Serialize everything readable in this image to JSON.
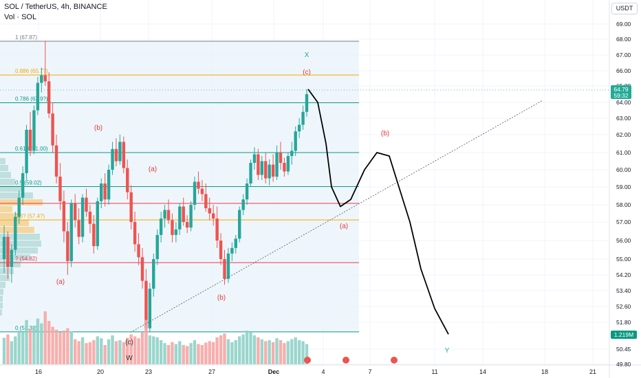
{
  "header": {
    "symbol": "SOL / TetherUS, 4h, BINANCE",
    "volume_label": "Vol · SOL",
    "currency": "USDT"
  },
  "colors": {
    "up": "#26a69a",
    "down": "#ef5350",
    "fib_gray": "#787b86",
    "fib_orange": "#f7a600",
    "fib_teal": "#089981",
    "fib_red": "#f23645",
    "wave_label": "#e53935",
    "price_tag": "#22ab94",
    "vol_tag": "#089981"
  },
  "chart_data": {
    "type": "candlestick",
    "y_axis": {
      "ticks": [
        "69.00",
        "68.00",
        "67.00",
        "66.00",
        "65.00",
        "64.00",
        "63.00",
        "62.00",
        "61.00",
        "60.00",
        "59.00",
        "58.00",
        "57.00",
        "56.00",
        "55.00",
        "54.20",
        "53.40",
        "52.60",
        "51.80",
        "50.45",
        "49.80"
      ],
      "current_price": "64.79",
      "countdown": "59:32",
      "volume_tag": "1.219M"
    },
    "x_axis": {
      "ticks": [
        "16",
        "20",
        "23",
        "27",
        "Dec",
        "4",
        "7",
        "11",
        "14",
        "18",
        "21"
      ]
    },
    "fib_levels": [
      {
        "label": "1 (67.87)",
        "price": 67.87,
        "color": "#787b86"
      },
      {
        "label": "0.886 (65.7?)",
        "price": 65.72,
        "color": "#f7a600"
      },
      {
        "label": "0.786 (63.9?)",
        "price": 63.98,
        "color": "#089981"
      },
      {
        "label": "0.618 (61.00)",
        "price": 61.0,
        "color": "#089981"
      },
      {
        "label": "0.5 (59.02)",
        "price": 59.02,
        "color": "#089981"
      },
      {
        "label": "",
        "price": 58.08,
        "color": "#f23645"
      },
      {
        "label": "0.3? (57.4?)",
        "price": 57.12,
        "color": "#f7a600"
      },
      {
        "label": "? (54.82)",
        "price": 54.82,
        "color": "#f23645"
      },
      {
        "label": "0 (51.32)",
        "price": 51.32,
        "color": "#089981"
      }
    ],
    "wave_labels": [
      "(a)",
      "(b)",
      "(a)",
      "(b)",
      "(c)",
      "(c)",
      "(b)",
      "(a)",
      "X",
      "Y",
      "W"
    ],
    "candles_ohlc": [
      [
        55.0,
        56.8,
        54.3,
        56.2
      ],
      [
        56.2,
        56.5,
        54.0,
        54.6
      ],
      [
        54.6,
        55.8,
        53.8,
        55.5
      ],
      [
        55.5,
        57.6,
        55.2,
        57.3
      ],
      [
        57.3,
        58.8,
        56.9,
        58.4
      ],
      [
        58.4,
        60.2,
        58.0,
        59.8
      ],
      [
        59.8,
        62.6,
        59.4,
        62.3
      ],
      [
        62.3,
        63.4,
        60.8,
        61.1
      ],
      [
        61.1,
        63.8,
        60.9,
        63.5
      ],
      [
        63.5,
        65.6,
        63.2,
        65.2
      ],
      [
        65.2,
        66.2,
        64.6,
        65.7
      ],
      [
        65.7,
        67.9,
        65.0,
        65.3
      ],
      [
        65.3,
        65.9,
        63.0,
        63.3
      ],
      [
        63.3,
        64.0,
        61.0,
        61.4
      ],
      [
        61.4,
        62.0,
        59.2,
        59.6
      ],
      [
        59.6,
        60.4,
        57.7,
        58.2
      ],
      [
        58.2,
        58.8,
        55.9,
        56.5
      ],
      [
        56.5,
        57.0,
        54.2,
        54.9
      ],
      [
        54.9,
        58.3,
        54.6,
        58.1
      ],
      [
        58.1,
        58.6,
        56.7,
        57.1
      ],
      [
        57.1,
        57.8,
        55.8,
        56.2
      ],
      [
        56.2,
        58.6,
        55.9,
        58.4
      ],
      [
        58.4,
        58.9,
        57.3,
        57.6
      ],
      [
        57.6,
        58.0,
        56.4,
        56.9
      ],
      [
        56.9,
        57.4,
        55.3,
        55.7
      ],
      [
        55.7,
        58.4,
        55.5,
        58.2
      ],
      [
        58.2,
        59.5,
        57.8,
        59.2
      ],
      [
        59.2,
        59.8,
        57.9,
        58.3
      ],
      [
        58.3,
        60.3,
        58.0,
        60.0
      ],
      [
        60.0,
        61.6,
        59.7,
        61.2
      ],
      [
        61.2,
        61.8,
        60.2,
        60.5
      ],
      [
        60.5,
        62.0,
        60.3,
        61.6
      ],
      [
        61.6,
        61.9,
        59.8,
        60.1
      ],
      [
        60.1,
        60.6,
        58.3,
        58.7
      ],
      [
        58.7,
        59.1,
        56.6,
        57.0
      ],
      [
        57.0,
        57.6,
        55.4,
        55.8
      ],
      [
        55.8,
        56.4,
        54.7,
        55.1
      ],
      [
        55.1,
        55.6,
        53.5,
        53.9
      ],
      [
        53.9,
        54.5,
        51.3,
        51.5
      ],
      [
        51.5,
        53.8,
        51.3,
        53.5
      ],
      [
        53.5,
        55.3,
        53.1,
        55.0
      ],
      [
        55.0,
        56.6,
        54.7,
        56.3
      ],
      [
        56.3,
        57.6,
        55.9,
        57.2
      ],
      [
        57.2,
        58.0,
        56.7,
        57.7
      ],
      [
        57.7,
        58.3,
        56.9,
        57.1
      ],
      [
        57.1,
        57.5,
        55.9,
        56.3
      ],
      [
        56.3,
        57.0,
        55.9,
        56.6
      ],
      [
        56.6,
        58.1,
        56.3,
        57.9
      ],
      [
        57.9,
        58.4,
        56.8,
        57.0
      ],
      [
        57.0,
        57.4,
        56.4,
        56.7
      ],
      [
        56.7,
        58.2,
        56.5,
        58.0
      ],
      [
        58.0,
        59.6,
        57.7,
        59.3
      ],
      [
        59.3,
        59.9,
        58.6,
        58.9
      ],
      [
        58.9,
        59.4,
        58.2,
        58.6
      ],
      [
        58.6,
        59.2,
        57.6,
        57.8
      ],
      [
        57.8,
        58.4,
        57.1,
        57.5
      ],
      [
        57.5,
        58.0,
        56.8,
        57.2
      ],
      [
        57.2,
        57.9,
        55.6,
        56.0
      ],
      [
        56.0,
        56.4,
        54.7,
        55.0
      ],
      [
        55.0,
        55.5,
        53.7,
        54.0
      ],
      [
        54.0,
        55.6,
        53.8,
        55.3
      ],
      [
        55.3,
        55.9,
        54.9,
        55.6
      ],
      [
        55.6,
        56.3,
        55.3,
        56.1
      ],
      [
        56.1,
        57.9,
        55.9,
        57.7
      ],
      [
        57.7,
        58.6,
        57.4,
        58.3
      ],
      [
        58.3,
        59.5,
        58.0,
        59.2
      ],
      [
        59.2,
        60.6,
        59.0,
        60.4
      ],
      [
        60.4,
        61.3,
        60.0,
        60.9
      ],
      [
        60.9,
        61.2,
        59.4,
        59.7
      ],
      [
        59.7,
        60.8,
        59.4,
        60.5
      ],
      [
        60.5,
        61.0,
        59.2,
        59.5
      ],
      [
        59.5,
        60.6,
        59.1,
        60.3
      ],
      [
        60.3,
        60.9,
        59.3,
        59.6
      ],
      [
        59.6,
        61.4,
        59.4,
        61.0
      ],
      [
        61.0,
        61.6,
        60.0,
        60.4
      ],
      [
        60.4,
        60.7,
        59.6,
        59.9
      ],
      [
        59.9,
        61.0,
        59.7,
        60.8
      ],
      [
        60.8,
        61.6,
        60.3,
        61.1
      ],
      [
        61.1,
        62.5,
        60.8,
        62.2
      ],
      [
        62.2,
        63.0,
        61.8,
        62.6
      ],
      [
        62.6,
        63.8,
        62.3,
        63.4
      ],
      [
        63.4,
        64.8,
        63.1,
        64.5
      ]
    ],
    "volumes": [
      0.55,
      0.62,
      0.48,
      0.58,
      0.7,
      0.66,
      0.92,
      0.74,
      0.8,
      0.95,
      0.85,
      1.1,
      0.9,
      0.78,
      0.72,
      0.66,
      0.7,
      0.75,
      0.68,
      0.52,
      0.48,
      0.56,
      0.44,
      0.46,
      0.5,
      0.58,
      0.54,
      0.4,
      0.52,
      0.6,
      0.48,
      0.5,
      0.46,
      0.55,
      0.62,
      0.58,
      0.54,
      0.66,
      0.92,
      0.6,
      0.58,
      0.56,
      0.5,
      0.44,
      0.4,
      0.46,
      0.42,
      0.48,
      0.4,
      0.38,
      0.44,
      0.5,
      0.42,
      0.4,
      0.45,
      0.48,
      0.46,
      0.56,
      0.6,
      0.64,
      0.52,
      0.46,
      0.5,
      0.58,
      0.62,
      0.7,
      0.66,
      0.6,
      0.56,
      0.52,
      0.48,
      0.5,
      0.46,
      0.54,
      0.5,
      0.44,
      0.48,
      0.52,
      0.56,
      0.5,
      0.48,
      0.42
    ],
    "projection_path_prices": [
      64.8,
      64.0,
      61.5,
      59.0,
      57.9,
      58.3,
      60.0,
      61.0,
      60.8,
      59.0,
      57.0,
      54.5,
      52.5,
      51.2
    ],
    "trendline": {
      "from_price": 51.3,
      "to_price": 64.1
    }
  }
}
